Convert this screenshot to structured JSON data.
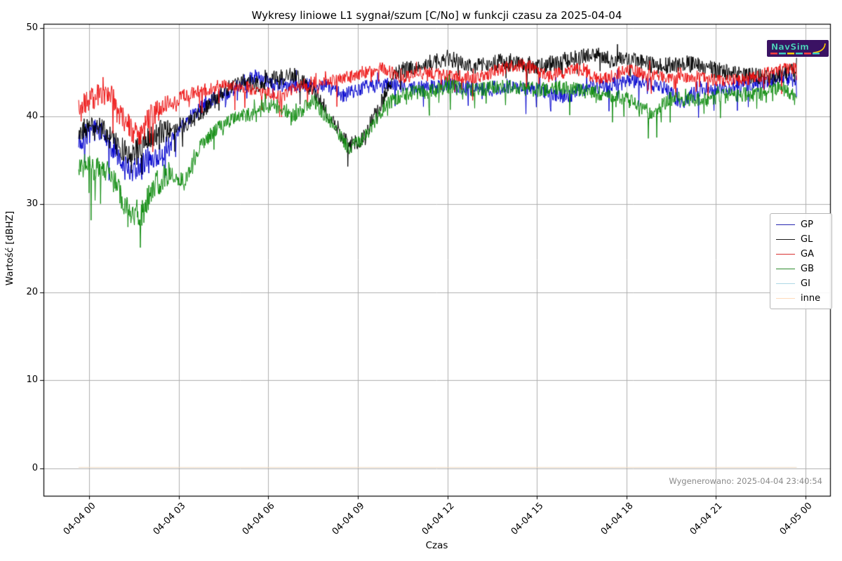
{
  "title": "Wykresy liniowe L1 sygnał/szum [C/No] w funkcji czasu za 2025-04-04",
  "watermark": "Wygenerowano: 2025-04-04 23:40:54",
  "logo": {
    "text": "NavSim",
    "bg": "#3a1263",
    "text_color": "#5fd8c4",
    "outline_color": "#0a3f5e",
    "swoosh_color": "#ffcc00",
    "subtext_colors": [
      "#ff4040",
      "#40d0c0",
      "#ffd000",
      "#40d0c0",
      "#ff4040",
      "#40d0c0"
    ]
  },
  "colors": {
    "grid": "#b0b0b0",
    "spine": "#000000",
    "background": "#ffffff"
  },
  "axes": {
    "xlabel": "Czas",
    "ylabel": "Wartość [dBHZ]",
    "ylim": [
      -3.1,
      50.5
    ],
    "yticks": [
      0,
      10,
      20,
      30,
      40,
      50
    ],
    "xticks": [
      {
        "h": 0,
        "label": "04-04 00"
      },
      {
        "h": 3,
        "label": "04-04 03"
      },
      {
        "h": 6,
        "label": "04-04 06"
      },
      {
        "h": 9,
        "label": "04-04 09"
      },
      {
        "h": 12,
        "label": "04-04 12"
      },
      {
        "h": 15,
        "label": "04-04 15"
      },
      {
        "h": 18,
        "label": "04-04 18"
      },
      {
        "h": 21,
        "label": "04-04 21"
      },
      {
        "h": 24,
        "label": "04-05 00"
      }
    ],
    "grid": true
  },
  "legend": {
    "position": "right",
    "items": [
      {
        "label": "GP",
        "color": "#2525b0"
      },
      {
        "label": "GL",
        "color": "#1a1a1a"
      },
      {
        "label": "GA",
        "color": "#d93030"
      },
      {
        "label": "GB",
        "color": "#2e8b2e"
      },
      {
        "label": "GI",
        "color": "#add8e6"
      },
      {
        "label": "inne",
        "color": "#ffdab9"
      }
    ]
  },
  "chart_data": {
    "type": "line",
    "title": "Wykresy liniowe L1 sygnał/szum [C/No] w funkcji czasu za 2025-04-04",
    "xlabel": "Czas",
    "ylabel": "Wartość [dBHZ]",
    "x_unit": "hours_from_2025-04-04T00:00",
    "x_range": [
      -0.35,
      23.7
    ],
    "ylim": [
      -3.1,
      50.5
    ],
    "series": [
      {
        "name": "GP",
        "color": "#0000cd",
        "h": [
          -0.35,
          0.3,
          0.8,
          1.2,
          1.6,
          2.0,
          2.5,
          3.0,
          3.5,
          4.2,
          5.0,
          5.6,
          6.2,
          7.0,
          7.8,
          8.5,
          9.2,
          10.0,
          11.0,
          12.0,
          13.0,
          14.0,
          15.0,
          16.0,
          16.5,
          17.5,
          18.5,
          19.3,
          19.8,
          20.5,
          21.5,
          22.5,
          23.2,
          23.7
        ],
        "v": [
          37.5,
          38.3,
          36.5,
          34.0,
          33.8,
          35.3,
          36.0,
          38.3,
          40.3,
          42.0,
          43.3,
          44.6,
          43.6,
          43.4,
          43.6,
          42.4,
          43.2,
          43.8,
          43.2,
          43.5,
          43.0,
          43.4,
          43.1,
          42.2,
          43.0,
          43.6,
          44.0,
          43.2,
          41.5,
          43.0,
          43.3,
          43.6,
          44.5,
          43.9
        ],
        "render": {
          "seed": 101,
          "amp": 0.85,
          "spike_prob": 0.035,
          "spike_max": 2.8,
          "dip_mul": 1.7
        }
      },
      {
        "name": "GL",
        "color": "#000000",
        "h": [
          -0.35,
          0.4,
          0.9,
          1.4,
          1.9,
          2.4,
          3.0,
          3.6,
          4.3,
          5.0,
          5.6,
          6.2,
          6.9,
          7.5,
          8.1,
          8.7,
          9.2,
          9.7,
          10.3,
          11.0,
          12.0,
          13.0,
          14.0,
          15.0,
          16.0,
          17.0,
          17.4,
          18.2,
          19.0,
          20.0,
          21.0,
          22.0,
          23.0,
          23.7
        ],
        "v": [
          38.4,
          38.6,
          36.8,
          35.6,
          37.4,
          38.3,
          38.6,
          39.8,
          42.2,
          44.0,
          43.6,
          44.3,
          44.6,
          43.0,
          39.8,
          36.6,
          37.6,
          41.0,
          45.2,
          45.6,
          46.6,
          45.6,
          46.3,
          45.6,
          46.4,
          47.0,
          46.2,
          46.6,
          45.6,
          46.0,
          45.2,
          44.6,
          44.5,
          45.4
        ],
        "render": {
          "seed": 202,
          "amp": 0.95,
          "spike_prob": 0.03,
          "spike_max": 2.2,
          "dip_mul": 1.4
        }
      },
      {
        "name": "GA",
        "color": "#ee1111",
        "h": [
          -0.35,
          0.2,
          0.7,
          1.2,
          1.7,
          2.1,
          2.6,
          3.2,
          3.8,
          4.4,
          5.1,
          5.8,
          6.4,
          7.0,
          7.7,
          8.4,
          9.1,
          9.8,
          10.5,
          11.3,
          12.1,
          13.0,
          14.0,
          14.6,
          15.4,
          16.3,
          17.2,
          18.0,
          18.8,
          19.6,
          20.4,
          21.3,
          22.2,
          23.1,
          23.7
        ],
        "v": [
          40.6,
          42.3,
          42.6,
          39.3,
          37.6,
          40.3,
          41.0,
          42.4,
          43.0,
          43.4,
          43.4,
          42.8,
          42.2,
          43.4,
          43.8,
          44.1,
          44.9,
          45.4,
          44.4,
          44.9,
          44.5,
          44.4,
          45.6,
          45.8,
          44.5,
          45.4,
          44.1,
          45.3,
          44.6,
          44.3,
          44.5,
          43.9,
          44.3,
          45.3,
          45.4
        ],
        "render": {
          "seed": 303,
          "amp": 0.75,
          "spike_prob": 0.04,
          "spike_max": 2.6,
          "dip_mul": 1.9
        }
      },
      {
        "name": "GB",
        "color": "#0f8c0f",
        "h": [
          -0.35,
          0.3,
          0.8,
          1.3,
          1.7,
          2.2,
          2.7,
          3.2,
          3.7,
          4.2,
          4.8,
          5.5,
          6.2,
          6.9,
          7.5,
          8.1,
          8.7,
          9.3,
          9.9,
          10.6,
          11.3,
          12.1,
          13.0,
          14.0,
          15.0,
          16.0,
          17.0,
          18.0,
          18.8,
          19.5,
          20.5,
          21.5,
          22.5,
          23.2,
          23.7
        ],
        "v": [
          34.4,
          33.8,
          32.6,
          29.2,
          28.4,
          32.2,
          33.4,
          32.6,
          36.4,
          38.4,
          39.6,
          40.4,
          41.3,
          40.0,
          41.8,
          39.2,
          36.4,
          37.8,
          41.2,
          42.6,
          42.8,
          43.3,
          43.0,
          43.4,
          43.0,
          43.3,
          42.6,
          42.0,
          40.2,
          42.0,
          41.8,
          42.4,
          42.5,
          43.3,
          42.1
        ],
        "render": {
          "seed": 404,
          "amp": 0.85,
          "spike_prob": 0.04,
          "spike_max": 2.6,
          "dip_mul": 1.8
        }
      },
      {
        "name": "GI",
        "color": "#add8e6",
        "h": [
          -0.35,
          23.7
        ],
        "v": [
          0.12,
          0.12
        ],
        "render": {
          "seed": 505,
          "amp": 0,
          "spike_prob": 0,
          "spike_max": 0,
          "dip_mul": 1
        }
      },
      {
        "name": "inne",
        "color": "#ffdab9",
        "h": [
          -0.35,
          23.7
        ],
        "v": [
          0.12,
          0.12
        ],
        "render": {
          "seed": 606,
          "amp": 0,
          "spike_prob": 0,
          "spike_max": 0,
          "dip_mul": 1
        }
      }
    ]
  }
}
